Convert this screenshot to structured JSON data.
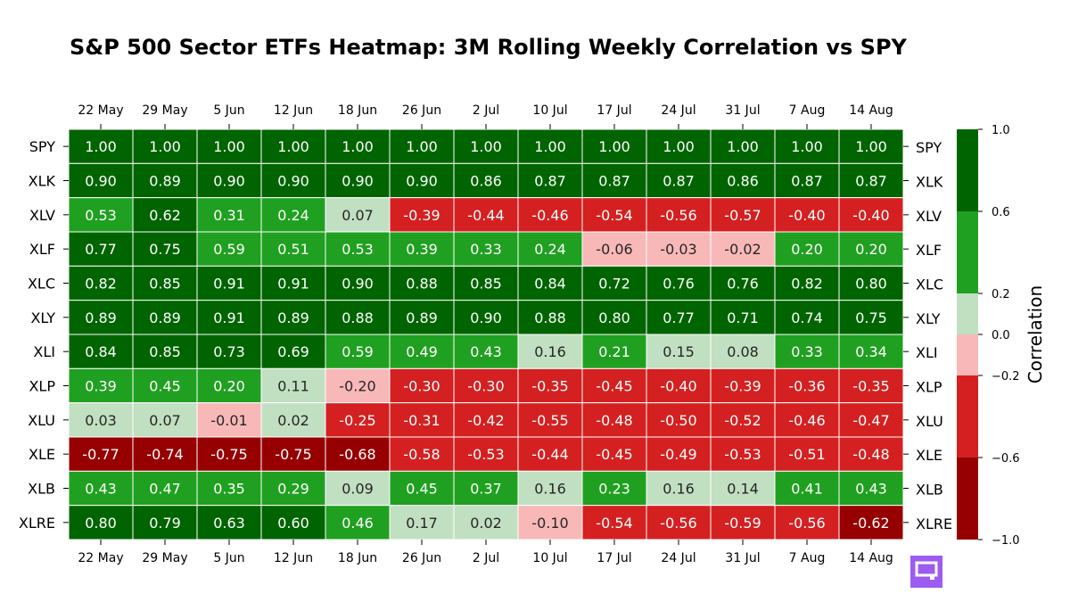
{
  "chart_data": {
    "type": "heatmap",
    "title": "S&P 500 Sector ETFs Heatmap: 3M Rolling Weekly Correlation vs SPY",
    "x": [
      "22 May",
      "29 May",
      "5 Jun",
      "12 Jun",
      "18 Jun",
      "26 Jun",
      "2 Jul",
      "10 Jul",
      "17 Jul",
      "24 Jul",
      "31 Jul",
      "7 Aug",
      "14 Aug"
    ],
    "y": [
      "SPY",
      "XLK",
      "XLV",
      "XLF",
      "XLC",
      "XLY",
      "XLI",
      "XLP",
      "XLU",
      "XLE",
      "XLB",
      "XLRE"
    ],
    "values": [
      [
        1.0,
        1.0,
        1.0,
        1.0,
        1.0,
        1.0,
        1.0,
        1.0,
        1.0,
        1.0,
        1.0,
        1.0,
        1.0
      ],
      [
        0.9,
        0.89,
        0.9,
        0.9,
        0.9,
        0.9,
        0.86,
        0.87,
        0.87,
        0.87,
        0.86,
        0.87,
        0.87
      ],
      [
        0.53,
        0.62,
        0.31,
        0.24,
        0.07,
        -0.39,
        -0.44,
        -0.46,
        -0.54,
        -0.56,
        -0.57,
        -0.4,
        -0.4
      ],
      [
        0.77,
        0.75,
        0.59,
        0.51,
        0.53,
        0.39,
        0.33,
        0.24,
        -0.06,
        -0.03,
        -0.02,
        0.2,
        0.2
      ],
      [
        0.82,
        0.85,
        0.91,
        0.91,
        0.9,
        0.88,
        0.85,
        0.84,
        0.72,
        0.76,
        0.76,
        0.82,
        0.8
      ],
      [
        0.89,
        0.89,
        0.91,
        0.89,
        0.88,
        0.89,
        0.9,
        0.88,
        0.8,
        0.77,
        0.71,
        0.74,
        0.75
      ],
      [
        0.84,
        0.85,
        0.73,
        0.69,
        0.59,
        0.49,
        0.43,
        0.16,
        0.21,
        0.15,
        0.08,
        0.33,
        0.34
      ],
      [
        0.39,
        0.45,
        0.2,
        0.11,
        -0.2,
        -0.3,
        -0.3,
        -0.35,
        -0.45,
        -0.4,
        -0.39,
        -0.36,
        -0.35
      ],
      [
        0.03,
        0.07,
        -0.01,
        0.02,
        -0.25,
        -0.31,
        -0.42,
        -0.55,
        -0.48,
        -0.5,
        -0.52,
        -0.46,
        -0.47
      ],
      [
        -0.77,
        -0.74,
        -0.75,
        -0.75,
        -0.68,
        -0.58,
        -0.53,
        -0.44,
        -0.45,
        -0.49,
        -0.53,
        -0.51,
        -0.48
      ],
      [
        0.43,
        0.47,
        0.35,
        0.29,
        0.09,
        0.45,
        0.37,
        0.16,
        0.23,
        0.16,
        0.14,
        0.41,
        0.43
      ],
      [
        0.8,
        0.79,
        0.63,
        0.6,
        0.46,
        0.17,
        0.02,
        -0.1,
        -0.54,
        -0.56,
        -0.59,
        -0.56,
        -0.62
      ]
    ],
    "colorbar": {
      "label": "Correlation",
      "range": [
        -1.0,
        1.0
      ],
      "ticks": [
        "1.0",
        "0.6",
        "0.2",
        "0.0",
        "−0.2",
        "−0.6",
        "−1.0"
      ],
      "bins": [
        {
          "from": 0.6,
          "to": 1.0,
          "color": "#006400"
        },
        {
          "from": 0.2,
          "to": 0.6,
          "color": "#20a020"
        },
        {
          "from": 0.0,
          "to": 0.2,
          "color": "#c1dfc1"
        },
        {
          "from": -0.2,
          "to": 0.0,
          "color": "#f8b8b8"
        },
        {
          "from": -0.6,
          "to": -0.2,
          "color": "#d42020"
        },
        {
          "from": -1.0,
          "to": -0.6,
          "color": "#960000"
        }
      ]
    },
    "x_tick_positions": [
      "top",
      "bottom"
    ],
    "y_tick_positions": [
      "left",
      "right"
    ],
    "grid": false
  },
  "logo": {
    "color": "#9c5cf0",
    "icon": "chat-logo-icon"
  }
}
